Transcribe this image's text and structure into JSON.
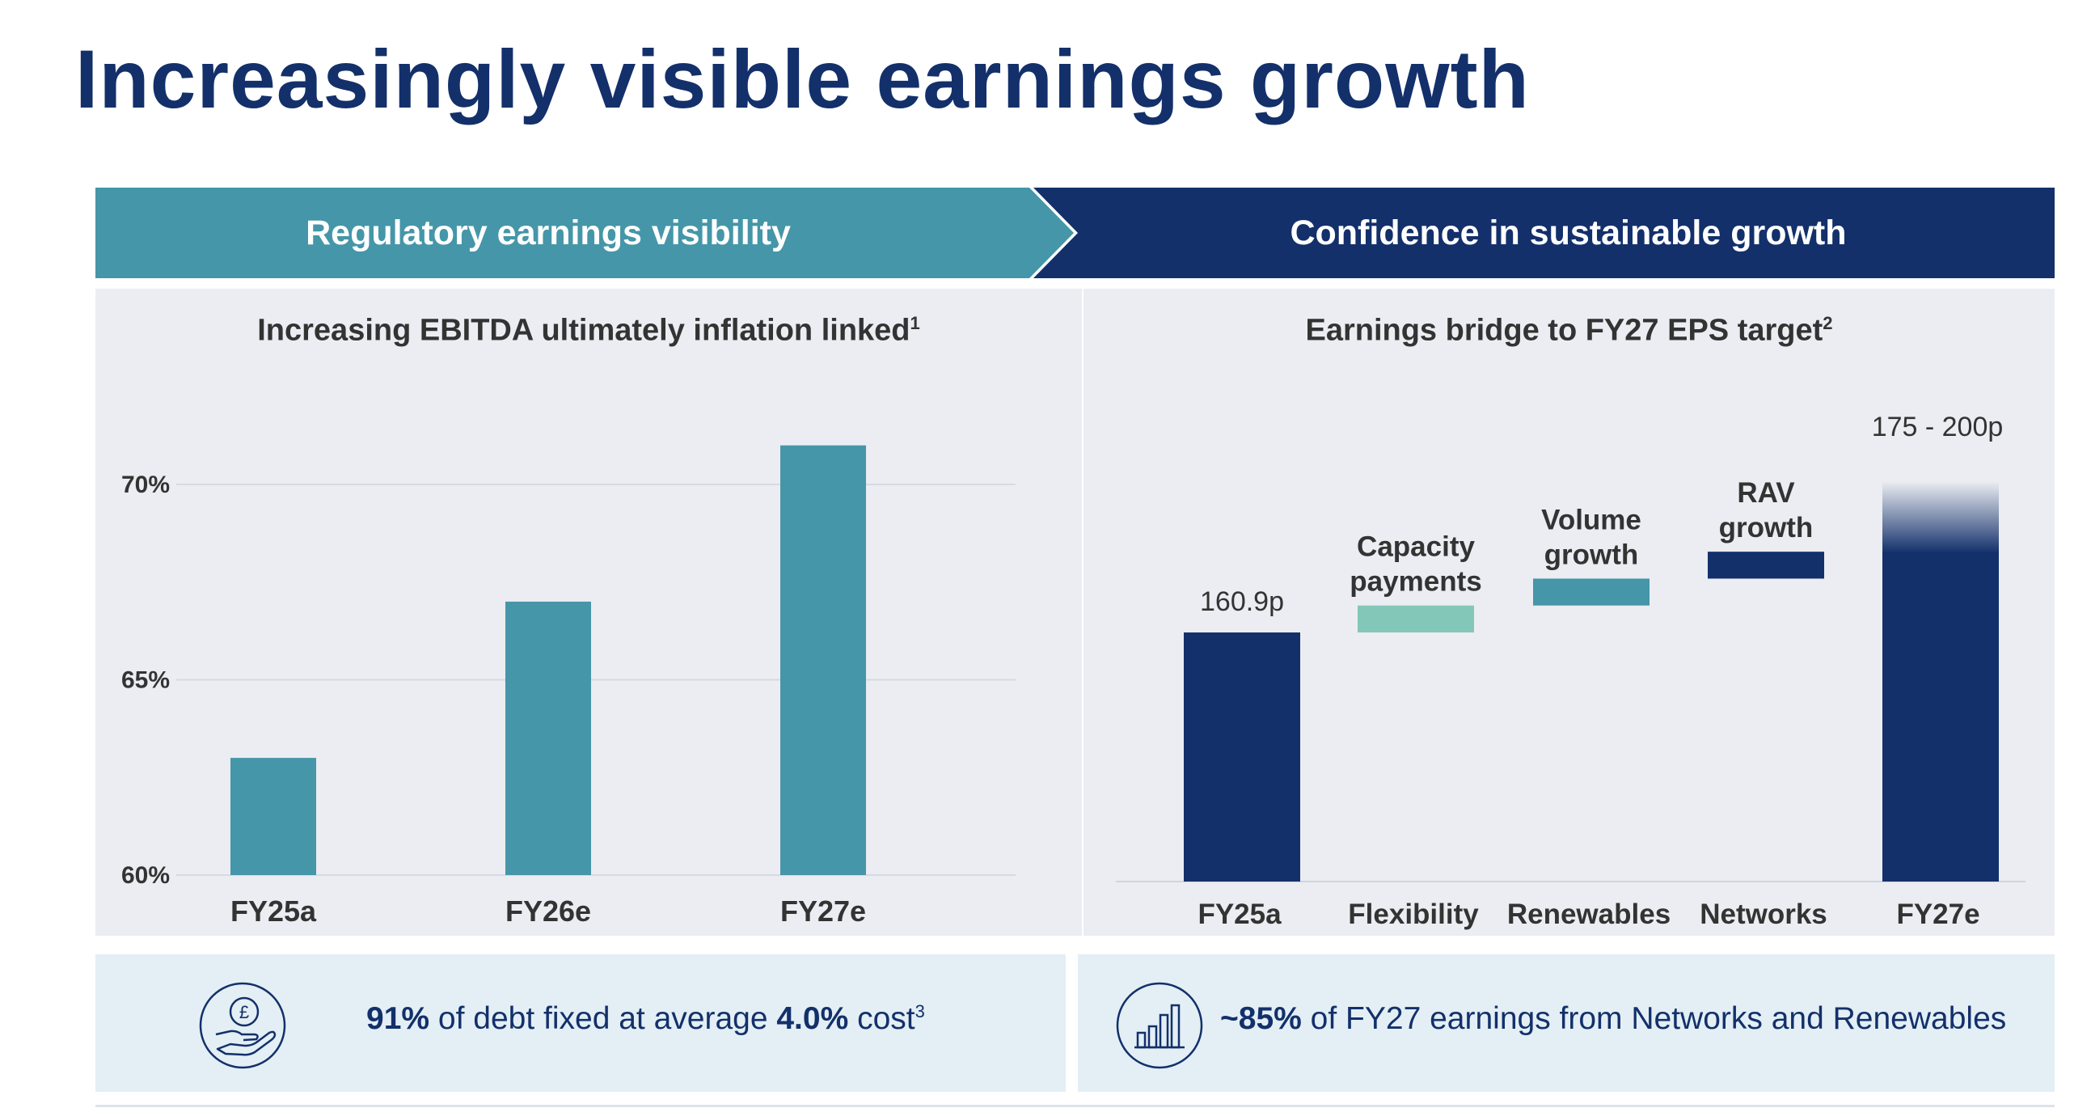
{
  "title": "Increasingly visible earnings growth",
  "banners": {
    "left": "Regulatory earnings visibility",
    "right": "Confidence in sustainable growth"
  },
  "left_panel": {
    "title": "Increasing EBITDA ultimately inflation linked",
    "footnote": "1"
  },
  "right_panel": {
    "title": "Earnings bridge to FY27 EPS target",
    "footnote": "2"
  },
  "chart_data": [
    {
      "type": "bar",
      "title": "Increasing EBITDA ultimately inflation linked",
      "categories": [
        "FY25a",
        "FY26e",
        "FY27e"
      ],
      "values": [
        63,
        67,
        71
      ],
      "ylim": [
        60,
        72
      ],
      "yticks": [
        60,
        65,
        70
      ],
      "ytick_labels": [
        "60%",
        "65%",
        "70%"
      ],
      "color": "#4596a8",
      "grid": true
    },
    {
      "type": "bar",
      "subtype": "waterfall",
      "title": "Earnings bridge to FY27 EPS target",
      "categories": [
        "FY25a",
        "Flexibility",
        "Renewables",
        "Networks",
        "FY27e"
      ],
      "labels_above": [
        "160.9p",
        "Capacity payments",
        "Volume growth",
        "RAV growth",
        "175 - 200p"
      ],
      "start": 160.9,
      "increments": [
        5.5,
        5.5,
        5.5
      ],
      "end_range": [
        175,
        200
      ],
      "ylim": [
        110,
        200
      ],
      "colors": [
        "#13306b",
        "#82c7b7",
        "#4596a8",
        "#13306b",
        "#13306b"
      ]
    }
  ],
  "footer": {
    "left": {
      "bold1": "91%",
      "text1": " of debt fixed at average ",
      "bold2": "4.0%",
      "text2": " cost",
      "footnote": "3",
      "icon": "pound-hand-icon"
    },
    "right": {
      "bold1": "~85%",
      "text1": " of FY27 earnings from Networks and Renewables",
      "icon": "bar-growth-icon"
    }
  }
}
